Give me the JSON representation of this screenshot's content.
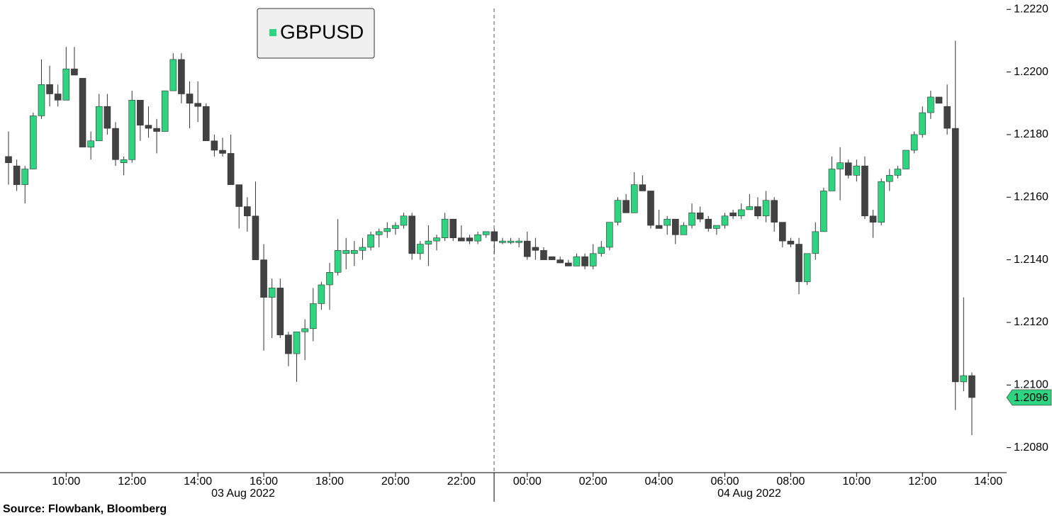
{
  "chart_data": {
    "type": "candlestick",
    "series_name": "GBPUSD",
    "up_color": "#2ed47f",
    "down_color": "#424242",
    "source": "Source: Flowbank, Bloomberg",
    "date_labels": [
      "03 Aug 2022",
      "04 Aug 2022"
    ],
    "x": [
      "08:15",
      "08:30",
      "08:45",
      "09:00",
      "09:15",
      "09:30",
      "09:45",
      "10:00",
      "10:15",
      "10:30",
      "10:45",
      "11:00",
      "11:15",
      "11:30",
      "11:45",
      "12:00",
      "12:15",
      "12:30",
      "12:45",
      "13:00",
      "13:15",
      "13:30",
      "13:45",
      "14:00",
      "14:15",
      "14:30",
      "14:45",
      "15:00",
      "15:15",
      "15:30",
      "15:45",
      "16:00",
      "16:15",
      "16:30",
      "16:45",
      "17:00",
      "17:15",
      "17:30",
      "17:45",
      "18:00",
      "18:15",
      "18:30",
      "18:45",
      "19:00",
      "19:15",
      "19:30",
      "19:45",
      "20:00",
      "20:15",
      "20:30",
      "20:45",
      "21:00",
      "21:15",
      "21:30",
      "21:45",
      "22:00",
      "22:15",
      "22:30",
      "22:45",
      "23:00",
      "23:15",
      "23:30",
      "23:45",
      "00:00",
      "00:15",
      "00:30",
      "00:45",
      "01:00",
      "01:15",
      "01:30",
      "01:45",
      "02:00",
      "02:15",
      "02:30",
      "02:45",
      "03:00",
      "03:15",
      "03:30",
      "03:45",
      "04:00",
      "04:15",
      "04:30",
      "04:45",
      "05:00",
      "05:15",
      "05:30",
      "05:45",
      "06:00",
      "06:15",
      "06:30",
      "06:45",
      "07:00",
      "07:15",
      "07:30",
      "07:45",
      "08:00",
      "08:15",
      "08:30",
      "08:45",
      "09:00",
      "09:15",
      "09:30",
      "09:45",
      "10:00",
      "10:15",
      "10:30",
      "10:45",
      "11:00",
      "11:15",
      "11:30",
      "11:45",
      "12:00",
      "12:15",
      "12:30",
      "12:45",
      "13:00",
      "13:15",
      "13:30"
    ],
    "open": [
      1.2173,
      1.217,
      1.2164,
      1.2169,
      1.2186,
      1.2196,
      1.2193,
      1.2191,
      1.2201,
      1.2198,
      1.2176,
      1.2178,
      1.2189,
      1.2182,
      1.2171,
      1.2172,
      1.2191,
      1.2183,
      1.2182,
      1.2181,
      1.2194,
      1.2204,
      1.2193,
      1.219,
      1.2189,
      1.2178,
      1.2175,
      1.2174,
      1.2164,
      1.2157,
      1.2154,
      1.214,
      1.2128,
      1.2131,
      1.2116,
      1.211,
      1.2117,
      1.2118,
      1.2126,
      1.2132,
      1.2136,
      1.2142,
      1.2142,
      1.2143,
      1.2144,
      1.2148,
      1.2149,
      1.215,
      1.2151,
      1.2154,
      1.2142,
      1.2145,
      1.2146,
      1.2147,
      1.2153,
      1.2147,
      1.2147,
      1.2146,
      1.2148,
      1.2149,
      1.21455,
      1.21455,
      1.21455,
      1.2146,
      1.2144,
      1.2143,
      1.2141,
      1.214,
      1.2139,
      1.2138,
      1.2141,
      1.2138,
      1.2142,
      1.2144,
      1.2152,
      1.2159,
      1.2155,
      1.2164,
      1.2162,
      1.2151,
      1.2151,
      1.2153,
      1.2148,
      1.2151,
      1.2155,
      1.2153,
      1.215,
      1.2151,
      1.2155,
      1.2154,
      1.2156,
      1.2157,
      1.2154,
      1.2159,
      1.2152,
      1.2146,
      1.2145,
      1.2133,
      1.2142,
      1.2149,
      1.2162,
      1.2169,
      1.2171,
      1.2167,
      1.217,
      1.2154,
      1.2152,
      1.2165,
      1.2167,
      1.2169,
      1.2175,
      1.218,
      1.2187,
      1.2192,
      1.2189,
      1.2182,
      1.2101,
      1.2103
    ],
    "high": [
      1.2181,
      1.2172,
      1.217,
      1.2187,
      1.2204,
      1.2202,
      1.2196,
      1.2208,
      1.2208,
      1.2198,
      1.2181,
      1.2193,
      1.2193,
      1.2184,
      1.2173,
      1.2194,
      1.2191,
      1.2189,
      1.2185,
      1.2194,
      1.2206,
      1.2206,
      1.2197,
      1.2197,
      1.219,
      1.218,
      1.2179,
      1.218,
      1.2164,
      1.216,
      1.2165,
      1.2145,
      1.2134,
      1.2134,
      1.2117,
      1.2117,
      1.2121,
      1.2131,
      1.2133,
      1.2139,
      1.2153,
      1.2147,
      1.2146,
      1.2147,
      1.2149,
      1.215,
      1.2152,
      1.2152,
      1.2155,
      1.2155,
      1.2146,
      1.2151,
      1.2148,
      1.2155,
      1.2153,
      1.2151,
      1.2148,
      1.2149,
      1.2149,
      1.215,
      1.2147,
      1.2147,
      1.2147,
      1.2149,
      1.2147,
      1.2144,
      1.2141,
      1.2141,
      1.214,
      1.2142,
      1.2142,
      1.2145,
      1.2146,
      1.2152,
      1.216,
      1.2161,
      1.2168,
      1.2167,
      1.2162,
      1.2156,
      1.2154,
      1.2153,
      1.2152,
      1.2158,
      1.2157,
      1.2154,
      1.2151,
      1.2155,
      1.2156,
      1.2158,
      1.2161,
      1.216,
      1.2162,
      1.216,
      1.2152,
      1.2147,
      1.2147,
      1.2142,
      1.2152,
      1.2163,
      1.2173,
      1.2176,
      1.2172,
      1.2172,
      1.2173,
      1.2156,
      1.2166,
      1.2169,
      1.217,
      1.2175,
      1.2181,
      1.2189,
      1.2194,
      1.2192,
      1.2196,
      1.221,
      1.2128,
      1.2104
    ],
    "low": [
      1.2164,
      1.2162,
      1.2158,
      1.2169,
      1.2185,
      1.2189,
      1.2189,
      1.2191,
      1.2199,
      1.2176,
      1.2172,
      1.2178,
      1.218,
      1.217,
      1.2167,
      1.2171,
      1.2178,
      1.2179,
      1.2174,
      1.2181,
      1.2194,
      1.219,
      1.2182,
      1.2184,
      1.2178,
      1.2173,
      1.2173,
      1.2164,
      1.215,
      1.2149,
      1.214,
      1.2111,
      1.2115,
      1.2115,
      1.2106,
      1.2101,
      1.2108,
      1.2114,
      1.2124,
      1.2124,
      1.2135,
      1.2137,
      1.2138,
      1.214,
      1.2143,
      1.2144,
      1.2147,
      1.2148,
      1.215,
      1.214,
      1.214,
      1.2138,
      1.2143,
      1.2146,
      1.2146,
      1.2146,
      1.2145,
      1.2145,
      1.2147,
      1.2142,
      1.2145,
      1.2145,
      1.2144,
      1.214,
      1.214,
      1.214,
      1.214,
      1.2139,
      1.2138,
      1.2138,
      1.2137,
      1.2137,
      1.2141,
      1.2143,
      1.2151,
      1.2155,
      1.2155,
      1.2162,
      1.215,
      1.215,
      1.2148,
      1.2145,
      1.2148,
      1.215,
      1.2152,
      1.2149,
      1.2148,
      1.215,
      1.2153,
      1.2153,
      1.2156,
      1.2153,
      1.2152,
      1.2149,
      1.2144,
      1.2144,
      1.2129,
      1.2132,
      1.214,
      1.2149,
      1.2162,
      1.2159,
      1.2166,
      1.2165,
      1.2153,
      1.2147,
      1.2151,
      1.2162,
      1.2166,
      1.2169,
      1.2174,
      1.2179,
      1.2185,
      1.219,
      1.218,
      1.2092,
      1.2098,
      1.2084
    ],
    "close": [
      1.2171,
      1.2164,
      1.2169,
      1.2186,
      1.2196,
      1.2193,
      1.2191,
      1.2201,
      1.2199,
      1.2176,
      1.2178,
      1.2189,
      1.2182,
      1.2172,
      1.2172,
      1.2191,
      1.2183,
      1.2182,
      1.2181,
      1.2194,
      1.2204,
      1.2193,
      1.219,
      1.2189,
      1.2178,
      1.2175,
      1.2174,
      1.2164,
      1.2157,
      1.2154,
      1.214,
      1.2128,
      1.2131,
      1.2116,
      1.211,
      1.2117,
      1.2118,
      1.2126,
      1.2132,
      1.2136,
      1.2143,
      1.2143,
      1.2143,
      1.2144,
      1.2148,
      1.2149,
      1.215,
      1.2151,
      1.2154,
      1.2142,
      1.2145,
      1.2146,
      1.2147,
      1.2153,
      1.2147,
      1.2146,
      1.2146,
      1.2148,
      1.2149,
      1.2146,
      1.2146,
      1.2146,
      1.2146,
      1.2141,
      1.2143,
      1.214,
      1.214,
      1.2139,
      1.2138,
      1.2141,
      1.2138,
      1.2142,
      1.2144,
      1.2152,
      1.2159,
      1.2155,
      1.2164,
      1.2162,
      1.2151,
      1.215,
      1.2153,
      1.2148,
      1.2151,
      1.2155,
      1.2153,
      1.215,
      1.2151,
      1.2154,
      1.2154,
      1.2156,
      1.2157,
      1.2154,
      1.2159,
      1.2152,
      1.2146,
      1.2145,
      1.2133,
      1.2142,
      1.2149,
      1.2162,
      1.2169,
      1.2171,
      1.2167,
      1.217,
      1.2154,
      1.2152,
      1.2165,
      1.2167,
      1.2169,
      1.2175,
      1.218,
      1.2187,
      1.2192,
      1.219,
      1.2182,
      1.2101,
      1.2103,
      1.2096
    ],
    "ylim": [
      1.2072,
      1.2223
    ],
    "yticks": [
      {
        "value": 1.208,
        "label": "1.2080"
      },
      {
        "value": 1.21,
        "label": "1.2100"
      },
      {
        "value": 1.212,
        "label": "1.2120"
      },
      {
        "value": 1.214,
        "label": "1.2140"
      },
      {
        "value": 1.216,
        "label": "1.2160"
      },
      {
        "value": 1.218,
        "label": "1.2180"
      },
      {
        "value": 1.22,
        "label": "1.2200"
      },
      {
        "value": 1.222,
        "label": "1.2220"
      }
    ],
    "xticks": [
      "10:00",
      "12:00",
      "14:00",
      "16:00",
      "18:00",
      "20:00",
      "22:00",
      "00:00",
      "02:00",
      "04:00",
      "06:00",
      "08:00",
      "10:00",
      "12:00",
      "14:00"
    ]
  }
}
